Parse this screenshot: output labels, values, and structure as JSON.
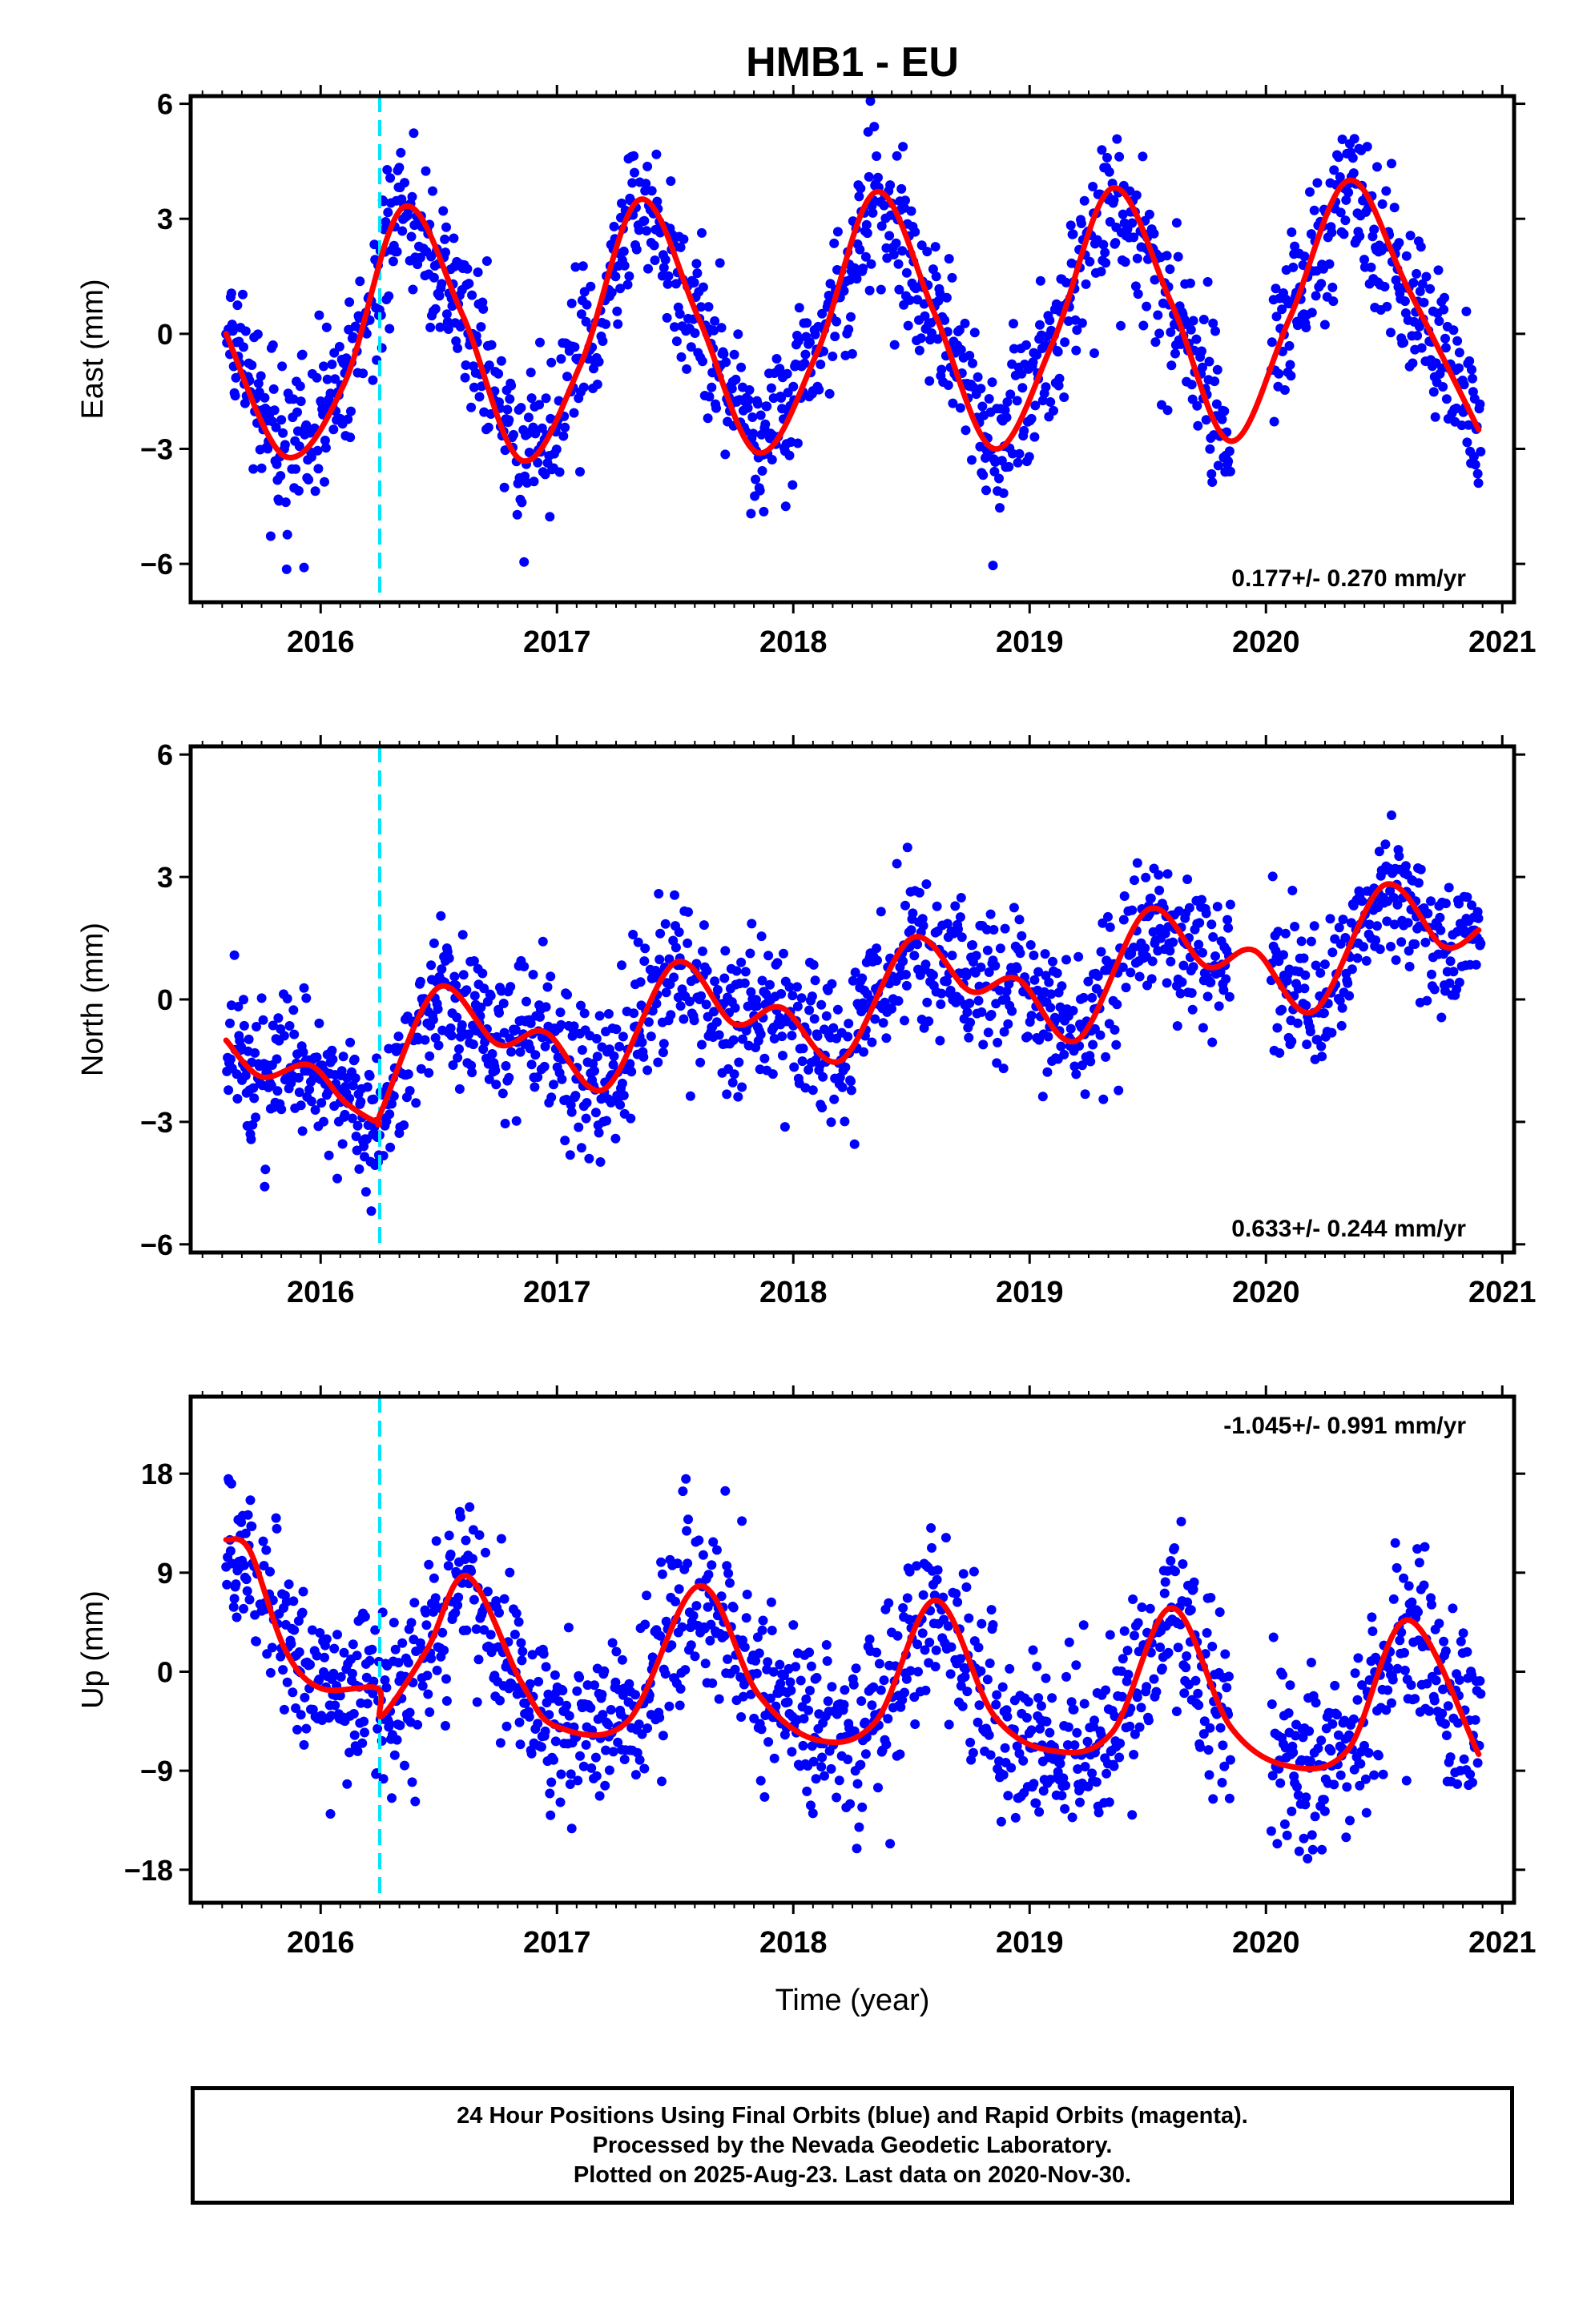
{
  "title": "HMB1 - EU",
  "xlabel": "Time (year)",
  "colors": {
    "dots": "#0000ff",
    "fit": "#ff0000",
    "event": "#00e5ff",
    "frame": "#000000"
  },
  "footer": {
    "line1": "24 Hour Positions Using Final Orbits (blue) and Rapid Orbits (magenta).",
    "line2": "Processed by the Nevada Geodetic Laboratory.",
    "line3": "Plotted on 2025-Aug-23. Last data on 2020-Nov-30."
  },
  "chart_data": [
    {
      "type": "scatter",
      "ylabel": "East (mm)",
      "rate_text": "0.177+/- 0.270 mm/yr",
      "rate_position": "bottom-right",
      "xlim": [
        2015.45,
        2021.05
      ],
      "ylim": [
        -7.0,
        6.2
      ],
      "xticks": [
        2016,
        2017,
        2018,
        2019,
        2020,
        2021
      ],
      "xtick_labels": [
        "2016",
        "2017",
        "2018",
        "2019",
        "2020",
        "2021"
      ],
      "yticks": [
        -6,
        -3,
        0,
        3,
        6
      ],
      "ytick_labels": [
        "−6",
        "−3",
        "0",
        "3",
        "6"
      ],
      "event_lines": [
        2016.25
      ],
      "data_start": 2015.6,
      "data_end": 2020.91,
      "gaps": [
        [
          2019.85,
          2020.02
        ]
      ],
      "noise_sd": 1.0,
      "fit_curve": {
        "x": [
          2015.6,
          2015.85,
          2016.1,
          2016.35,
          2016.6,
          2016.85,
          2017.1,
          2017.35,
          2017.6,
          2017.85,
          2018.1,
          2018.35,
          2018.6,
          2018.85,
          2019.1,
          2019.35,
          2019.6,
          2019.85,
          2020.1,
          2020.35,
          2020.6,
          2020.9
        ],
        "y": [
          0.0,
          -3.2,
          -1.3,
          3.3,
          0.5,
          -3.3,
          -0.8,
          3.5,
          0.4,
          -3.1,
          -0.5,
          3.7,
          0.5,
          -3.0,
          -0.2,
          3.8,
          0.8,
          -2.8,
          0.4,
          4.0,
          1.2,
          -2.5
        ]
      }
    },
    {
      "type": "scatter",
      "ylabel": "North (mm)",
      "rate_text": "0.633+/- 0.244 mm/yr",
      "rate_position": "bottom-right",
      "xlim": [
        2015.45,
        2021.05
      ],
      "ylim": [
        -6.2,
        6.2
      ],
      "xticks": [
        2016,
        2017,
        2018,
        2019,
        2020,
        2021
      ],
      "xtick_labels": [
        "2016",
        "2017",
        "2018",
        "2019",
        "2020",
        "2021"
      ],
      "yticks": [
        -6,
        -3,
        0,
        3,
        6
      ],
      "ytick_labels": [
        "−6",
        "−3",
        "0",
        "3",
        "6"
      ],
      "event_lines": [
        2016.25
      ],
      "data_start": 2015.6,
      "data_end": 2020.91,
      "gaps": [
        [
          2019.85,
          2020.02
        ]
      ],
      "noise_sd": 0.9,
      "fit_curve": {
        "x": [
          2015.6,
          2015.75,
          2015.95,
          2016.1,
          2016.24,
          2016.26,
          2016.5,
          2016.75,
          2016.95,
          2017.2,
          2017.5,
          2017.75,
          2017.95,
          2018.2,
          2018.5,
          2018.75,
          2018.95,
          2019.2,
          2019.5,
          2019.75,
          2019.95,
          2020.2,
          2020.5,
          2020.75,
          2020.9
        ],
        "y": [
          -1.0,
          -1.9,
          -1.6,
          -2.5,
          -3.0,
          -2.7,
          0.3,
          -1.1,
          -0.8,
          -2.2,
          0.9,
          -0.6,
          -0.2,
          -1.5,
          1.5,
          0.2,
          0.5,
          -1.0,
          2.2,
          0.8,
          1.2,
          -0.3,
          2.8,
          1.3,
          1.7
        ]
      }
    },
    {
      "type": "scatter",
      "ylabel": "Up (mm)",
      "rate_text": "-1.045+/- 0.991 mm/yr",
      "rate_position": "top-right",
      "xlim": [
        2015.45,
        2021.05
      ],
      "ylim": [
        -21,
        25
      ],
      "xticks": [
        2016,
        2017,
        2018,
        2019,
        2020,
        2021
      ],
      "xtick_labels": [
        "2016",
        "2017",
        "2018",
        "2019",
        "2020",
        "2021"
      ],
      "yticks": [
        -18,
        -9,
        0,
        9,
        18
      ],
      "ytick_labels": [
        "−18",
        "−9",
        "0",
        "9",
        "18"
      ],
      "event_lines": [
        2016.25
      ],
      "data_start": 2015.6,
      "data_end": 2020.91,
      "gaps": [
        [
          2019.85,
          2020.02
        ]
      ],
      "noise_sd": 4.0,
      "fit_curve": {
        "x": [
          2015.6,
          2015.7,
          2015.85,
          2016.0,
          2016.24,
          2016.26,
          2016.45,
          2016.62,
          2016.85,
          2017.0,
          2017.3,
          2017.6,
          2017.85,
          2018.1,
          2018.35,
          2018.6,
          2018.85,
          2019.1,
          2019.35,
          2019.6,
          2019.85,
          2020.1,
          2020.35,
          2020.6,
          2020.9
        ],
        "y": [
          12,
          11,
          2,
          -1.5,
          -1.5,
          -4,
          2,
          8.7,
          -1,
          -5,
          -4.5,
          7.8,
          -2,
          -6.2,
          -4.5,
          6.5,
          -4,
          -7.2,
          -5.5,
          5.8,
          -5,
          -8.6,
          -7,
          4.7,
          -7.5
        ]
      }
    }
  ]
}
